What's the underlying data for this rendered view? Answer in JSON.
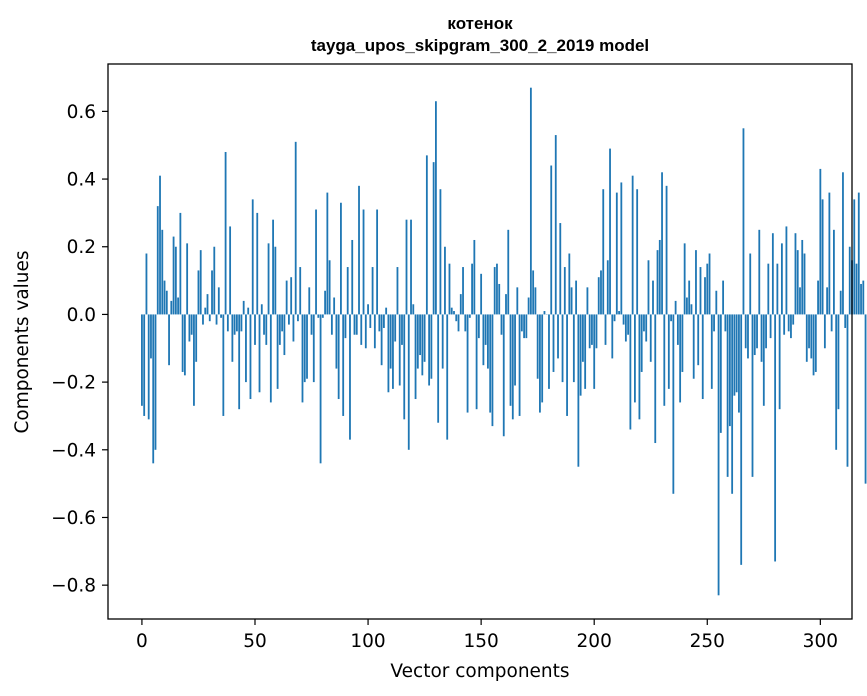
{
  "chart_data": {
    "type": "bar",
    "title": "котенок",
    "subtitle": "tayga_upos_skipgram_300_2_2019 model",
    "xlabel": "Vector components",
    "ylabel": "Components values",
    "xlim": [
      -15,
      314
    ],
    "ylim": [
      -0.9,
      0.74
    ],
    "x_ticks": [
      0,
      50,
      100,
      150,
      200,
      250,
      300
    ],
    "x_tick_labels": [
      "0",
      "50",
      "100",
      "150",
      "200",
      "250",
      "300"
    ],
    "y_ticks": [
      0.6,
      0.4,
      0.2,
      0.0,
      -0.2,
      -0.4,
      -0.6,
      -0.8
    ],
    "y_tick_labels": [
      "0.6",
      "0.4",
      "0.2",
      "0.0",
      "−0.2",
      "−0.4",
      "−0.6",
      "−0.8"
    ],
    "bar_color": "#1f77b4",
    "grid": false,
    "values": [
      -0.27,
      -0.3,
      0.18,
      -0.31,
      -0.13,
      -0.44,
      -0.4,
      0.32,
      0.41,
      0.25,
      0.1,
      0.07,
      -0.15,
      0.04,
      0.23,
      0.2,
      0.05,
      0.3,
      -0.17,
      -0.18,
      0.21,
      -0.08,
      -0.06,
      -0.27,
      -0.14,
      0.13,
      0.19,
      -0.03,
      0.02,
      0.06,
      -0.02,
      0.13,
      0.2,
      -0.03,
      0.08,
      -0.01,
      -0.3,
      0.48,
      -0.05,
      0.26,
      -0.14,
      -0.06,
      -0.05,
      -0.28,
      -0.05,
      0.04,
      -0.2,
      0.02,
      -0.25,
      0.34,
      -0.09,
      0.3,
      -0.23,
      0.03,
      -0.06,
      -0.09,
      0.21,
      -0.26,
      0.28,
      0.2,
      -0.22,
      -0.09,
      -0.05,
      -0.12,
      0.1,
      -0.03,
      0.11,
      -0.08,
      0.51,
      -0.02,
      0.14,
      -0.26,
      -0.2,
      -0.19,
      0.08,
      -0.06,
      -0.2,
      0.31,
      -0.01,
      -0.44,
      -0.01,
      0.07,
      0.36,
      0.16,
      -0.06,
      0.05,
      -0.16,
      -0.25,
      0.33,
      -0.3,
      -0.07,
      0.14,
      -0.37,
      0.22,
      -0.06,
      -0.06,
      0.38,
      -0.09,
      0.31,
      -0.1,
      0.03,
      -0.04,
      0.14,
      -0.1,
      0.31,
      -0.05,
      -0.15,
      -0.04,
      0.02,
      -0.23,
      -0.16,
      -0.22,
      -0.08,
      0.14,
      -0.21,
      -0.09,
      -0.31,
      0.28,
      -0.4,
      0.28,
      0.03,
      -0.25,
      -0.16,
      -0.12,
      -0.18,
      -0.14,
      0.47,
      -0.21,
      -0.19,
      0.45,
      0.63,
      -0.32,
      0.37,
      -0.16,
      0.2,
      -0.37,
      0.15,
      0.02,
      0.01,
      -0.02,
      -0.05,
      0.06,
      0.14,
      -0.05,
      -0.29,
      -0.01,
      0.15,
      0.22,
      -0.28,
      -0.07,
      0.12,
      -0.15,
      -0.09,
      -0.16,
      -0.29,
      -0.33,
      0.14,
      0.15,
      0.09,
      -0.06,
      -0.36,
      0.06,
      0.25,
      -0.27,
      -0.31,
      -0.21,
      0.08,
      -0.3,
      -0.05,
      -0.07,
      -0.07,
      0.05,
      0.67,
      0.13,
      0.08,
      -0.19,
      -0.29,
      -0.26,
      0.01,
      0.0,
      -0.22,
      0.44,
      -0.17,
      0.53,
      -0.13,
      0.27,
      -0.2,
      0.14,
      -0.3,
      0.18,
      0.08,
      -0.2,
      0.1,
      -0.45,
      -0.24,
      -0.14,
      -0.22,
      0.08,
      -0.1,
      -0.09,
      -0.22,
      -0.1,
      0.11,
      0.13,
      0.37,
      -0.09,
      0.16,
      0.49,
      -0.13,
      -0.02,
      0.36,
      0.01,
      0.39,
      -0.03,
      -0.08,
      -0.06,
      -0.34,
      0.41,
      -0.26,
      0.37,
      -0.31,
      -0.17,
      -0.05,
      -0.08,
      0.16,
      -0.14,
      0.1,
      -0.38,
      0.19,
      0.22,
      0.42,
      -0.27,
      0.38,
      -0.22,
      -0.02,
      -0.53,
      0.04,
      -0.09,
      -0.26,
      -0.17,
      0.21,
      0.05,
      0.1,
      0.03,
      -0.19,
      0.19,
      -0.15,
      0.14,
      -0.25,
      0.11,
      0.15,
      0.18,
      -0.22,
      -0.05,
      0.07,
      -0.83,
      -0.35,
      0.1,
      -0.05,
      -0.48,
      -0.33,
      -0.53,
      -0.24,
      -0.23,
      -0.29,
      -0.74,
      0.55,
      -0.1,
      -0.13,
      0.18,
      -0.48,
      -0.12,
      -0.1,
      0.25,
      -0.14,
      -0.27,
      -0.1,
      0.15,
      -0.07,
      0.24,
      -0.73,
      0.15,
      -0.28,
      0.21,
      -0.06,
      0.26,
      -0.05,
      -0.07,
      -0.03,
      0.24,
      0.19,
      0.08,
      0.22,
      0.18,
      -0.14,
      -0.1,
      -0.13,
      -0.18,
      -0.17,
      0.1,
      0.43,
      0.34,
      -0.1,
      0.08,
      0.36,
      -0.05,
      0.25,
      -0.4,
      -0.28,
      0.07,
      0.42,
      -0.04,
      -0.45,
      0.2,
      0.16,
      0.34,
      0.15,
      0.36,
      0.09,
      0.1,
      -0.5
    ]
  }
}
